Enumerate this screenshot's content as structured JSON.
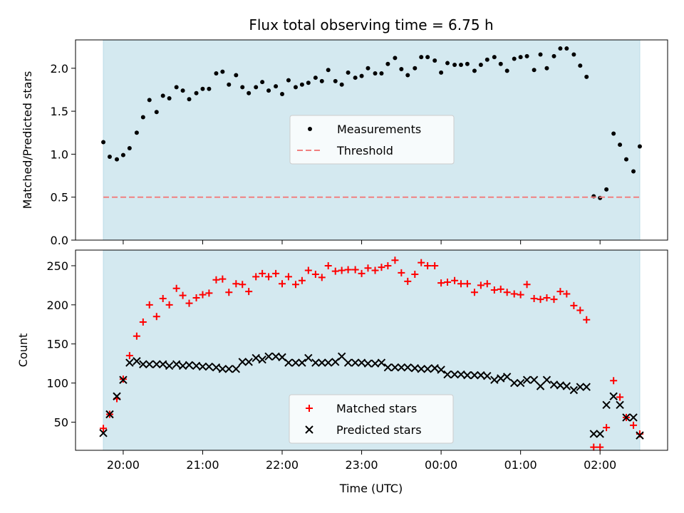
{
  "chart_data": {
    "type": "scatter",
    "title": "Flux total observing time = 6.75 h",
    "xlabel": "Time (UTC)",
    "x_tick_labels": [
      "20:00",
      "21:00",
      "22:00",
      "23:00",
      "00:00",
      "01:00",
      "02:00"
    ],
    "x_tick_hours": [
      20,
      21,
      22,
      23,
      24,
      25,
      26
    ],
    "xlim_hours": [
      19.4,
      26.85
    ],
    "observing_window_hours": [
      19.75,
      26.5
    ],
    "observing_window_color": "#d4e9f0",
    "panels": [
      {
        "ylabel": "Matched/Predicted stars",
        "ylim": [
          0,
          2.33
        ],
        "y_ticks": [
          0.0,
          0.5,
          1.0,
          1.5,
          2.0
        ],
        "y_tick_labels": [
          "0.0",
          "0.5",
          "1.0",
          "1.5",
          "2.0"
        ],
        "legend_position": "center",
        "series": [
          {
            "name": "Measurements",
            "marker": "dot",
            "color": "#000000",
            "x": [
              19.75,
              19.83,
              19.92,
              20.0,
              20.08,
              20.17,
              20.25,
              20.33,
              20.42,
              20.5,
              20.58,
              20.67,
              20.75,
              20.83,
              20.92,
              21.0,
              21.08,
              21.17,
              21.25,
              21.33,
              21.42,
              21.5,
              21.58,
              21.67,
              21.75,
              21.83,
              21.92,
              22.0,
              22.08,
              22.17,
              22.25,
              22.33,
              22.42,
              22.5,
              22.58,
              22.67,
              22.75,
              22.83,
              22.92,
              23.0,
              23.08,
              23.17,
              23.25,
              23.33,
              23.42,
              23.5,
              23.58,
              23.67,
              23.75,
              23.83,
              23.92,
              24.0,
              24.08,
              24.17,
              24.25,
              24.33,
              24.42,
              24.5,
              24.58,
              24.67,
              24.75,
              24.83,
              24.92,
              25.0,
              25.08,
              25.17,
              25.25,
              25.33,
              25.42,
              25.5,
              25.58,
              25.67,
              25.75,
              25.83,
              25.92,
              26.0,
              26.08,
              26.17,
              26.25,
              26.33,
              26.42,
              26.5
            ],
            "y": [
              1.14,
              0.97,
              0.94,
              0.99,
              1.07,
              1.25,
              1.43,
              1.63,
              1.49,
              1.68,
              1.65,
              1.78,
              1.74,
              1.64,
              1.71,
              1.76,
              1.76,
              1.94,
              1.96,
              1.81,
              1.92,
              1.78,
              1.71,
              1.78,
              1.84,
              1.74,
              1.79,
              1.7,
              1.86,
              1.78,
              1.81,
              1.83,
              1.89,
              1.85,
              1.98,
              1.85,
              1.81,
              1.95,
              1.89,
              1.91,
              2.0,
              1.94,
              1.94,
              2.05,
              2.12,
              1.99,
              1.92,
              2.0,
              2.13,
              2.13,
              2.09,
              1.95,
              2.06,
              2.04,
              2.04,
              2.05,
              1.97,
              2.04,
              2.1,
              2.13,
              2.05,
              1.97,
              2.11,
              2.13,
              2.14,
              1.98,
              2.16,
              2.0,
              2.14,
              2.23,
              2.23,
              2.16,
              2.03,
              1.9,
              0.51,
              0.49,
              0.59,
              1.24,
              1.11,
              0.94,
              0.8,
              1.09
            ]
          },
          {
            "name": "Threshold",
            "marker": "dashed-line",
            "color": "#f08080",
            "x": [
              19.75,
              26.5
            ],
            "y": [
              0.5,
              0.5
            ]
          }
        ]
      },
      {
        "ylabel": "Count",
        "ylim": [
          14,
          270
        ],
        "y_ticks": [
          50,
          100,
          150,
          200,
          250
        ],
        "y_tick_labels": [
          "50",
          "100",
          "150",
          "200",
          "250"
        ],
        "legend_position": "lower center",
        "series": [
          {
            "name": "Matched stars",
            "marker": "plus",
            "color": "#ff0000",
            "x": [
              19.75,
              19.83,
              19.92,
              20.0,
              20.08,
              20.17,
              20.25,
              20.33,
              20.42,
              20.5,
              20.58,
              20.67,
              20.75,
              20.83,
              20.92,
              21.0,
              21.08,
              21.17,
              21.25,
              21.33,
              21.42,
              21.5,
              21.58,
              21.67,
              21.75,
              21.83,
              21.92,
              22.0,
              22.08,
              22.17,
              22.25,
              22.33,
              22.42,
              22.5,
              22.58,
              22.67,
              22.75,
              22.83,
              22.92,
              23.0,
              23.08,
              23.17,
              23.25,
              23.33,
              23.42,
              23.5,
              23.58,
              23.67,
              23.75,
              23.83,
              23.92,
              24.0,
              24.08,
              24.17,
              24.25,
              24.33,
              24.42,
              24.5,
              24.58,
              24.67,
              24.75,
              24.83,
              24.92,
              25.0,
              25.08,
              25.17,
              25.25,
              25.33,
              25.42,
              25.5,
              25.58,
              25.67,
              25.75,
              25.83,
              25.92,
              26.0,
              26.08,
              26.17,
              26.25,
              26.33,
              26.42,
              26.5
            ],
            "y": [
              42,
              60,
              80,
              105,
              135,
              160,
              178,
              200,
              185,
              208,
              200,
              221,
              212,
              202,
              209,
              213,
              215,
              232,
              233,
              216,
              227,
              226,
              217,
              236,
              240,
              236,
              240,
              227,
              236,
              226,
              231,
              244,
              239,
              235,
              250,
              243,
              244,
              245,
              245,
              240,
              247,
              244,
              248,
              250,
              257,
              241,
              230,
              239,
              254,
              250,
              250,
              228,
              229,
              231,
              227,
              227,
              216,
              225,
              227,
              219,
              220,
              216,
              214,
              213,
              226,
              208,
              207,
              209,
              207,
              217,
              214,
              199,
              193,
              181,
              18,
              18,
              43,
              103,
              82,
              56,
              46,
              35
            ]
          },
          {
            "name": "Predicted stars",
            "marker": "x",
            "color": "#000000",
            "x": [
              19.75,
              19.83,
              19.92,
              20.0,
              20.08,
              20.17,
              20.25,
              20.33,
              20.42,
              20.5,
              20.58,
              20.67,
              20.75,
              20.83,
              20.92,
              21.0,
              21.08,
              21.17,
              21.25,
              21.33,
              21.42,
              21.5,
              21.58,
              21.67,
              21.75,
              21.83,
              21.92,
              22.0,
              22.08,
              22.17,
              22.25,
              22.33,
              22.42,
              22.5,
              22.58,
              22.67,
              22.75,
              22.83,
              22.92,
              23.0,
              23.08,
              23.17,
              23.25,
              23.33,
              23.42,
              23.5,
              23.58,
              23.67,
              23.75,
              23.83,
              23.92,
              24.0,
              24.08,
              24.17,
              24.25,
              24.33,
              24.42,
              24.5,
              24.58,
              24.67,
              24.75,
              24.83,
              24.92,
              25.0,
              25.08,
              25.17,
              25.25,
              25.33,
              25.42,
              25.5,
              25.58,
              25.67,
              25.75,
              25.83,
              25.92,
              26.0,
              26.08,
              26.17,
              26.25,
              26.33,
              26.42,
              26.5
            ],
            "y": [
              36,
              60,
              83,
              104,
              126,
              128,
              124,
              124,
              124,
              124,
              122,
              124,
              122,
              123,
              122,
              121,
              121,
              120,
              118,
              118,
              118,
              127,
              127,
              132,
              130,
              134,
              134,
              133,
              126,
              126,
              126,
              132,
              126,
              126,
              126,
              127,
              134,
              126,
              126,
              126,
              125,
              125,
              126,
              120,
              120,
              120,
              120,
              119,
              118,
              118,
              119,
              117,
              111,
              111,
              111,
              110,
              110,
              110,
              109,
              104,
              106,
              108,
              100,
              100,
              104,
              104,
              96,
              104,
              98,
              97,
              96,
              91,
              95,
              95,
              35,
              35,
              72,
              83,
              72,
              56,
              56,
              33
            ]
          }
        ]
      }
    ]
  }
}
